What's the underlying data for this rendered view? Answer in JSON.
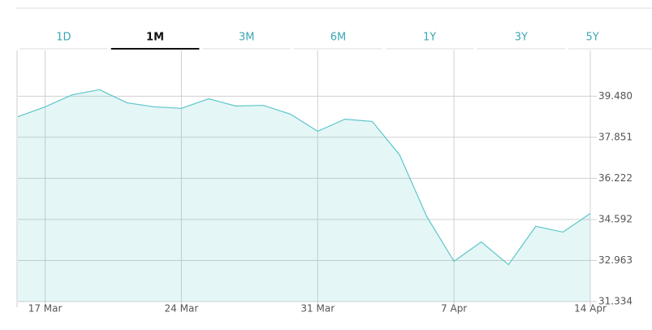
{
  "tabs": [
    "1D",
    "1M",
    "3M",
    "6M",
    "1Y",
    "3Y",
    "5Y"
  ],
  "selected_tab": "1M",
  "chart_data": {
    "type": "area",
    "x": [
      "14 Mar",
      "17 Mar",
      "18 Mar",
      "19 Mar",
      "20 Mar",
      "21 Mar",
      "24 Mar",
      "25 Mar",
      "26 Mar",
      "27 Mar",
      "28 Mar",
      "31 Mar",
      "1 Apr",
      "2 Apr",
      "3 Apr",
      "4 Apr",
      "7 Apr",
      "8 Apr",
      "9 Apr",
      "10 Apr",
      "11 Apr",
      "14 Apr"
    ],
    "values": [
      38.67,
      39.06,
      39.54,
      39.74,
      39.22,
      39.06,
      39.0,
      39.38,
      39.09,
      39.12,
      38.77,
      38.09,
      38.57,
      38.48,
      37.16,
      34.71,
      32.93,
      33.7,
      32.8,
      34.32,
      34.09,
      34.83
    ],
    "color": "#5cc6c9",
    "xticks": [
      "17 Mar",
      "24 Mar",
      "31 Mar",
      "7 Apr",
      "14 Apr"
    ],
    "ylim": [
      31.334,
      41.17
    ],
    "yticks": [
      {
        "value": 31.334,
        "label": "31.334"
      },
      {
        "value": 32.963,
        "label": "32.963"
      },
      {
        "value": 34.592,
        "label": "34.592"
      },
      {
        "value": 36.222,
        "label": "36.222"
      },
      {
        "value": 37.851,
        "label": "37.851"
      },
      {
        "value": 39.48,
        "label": "39.480"
      }
    ],
    "grid": true
  }
}
